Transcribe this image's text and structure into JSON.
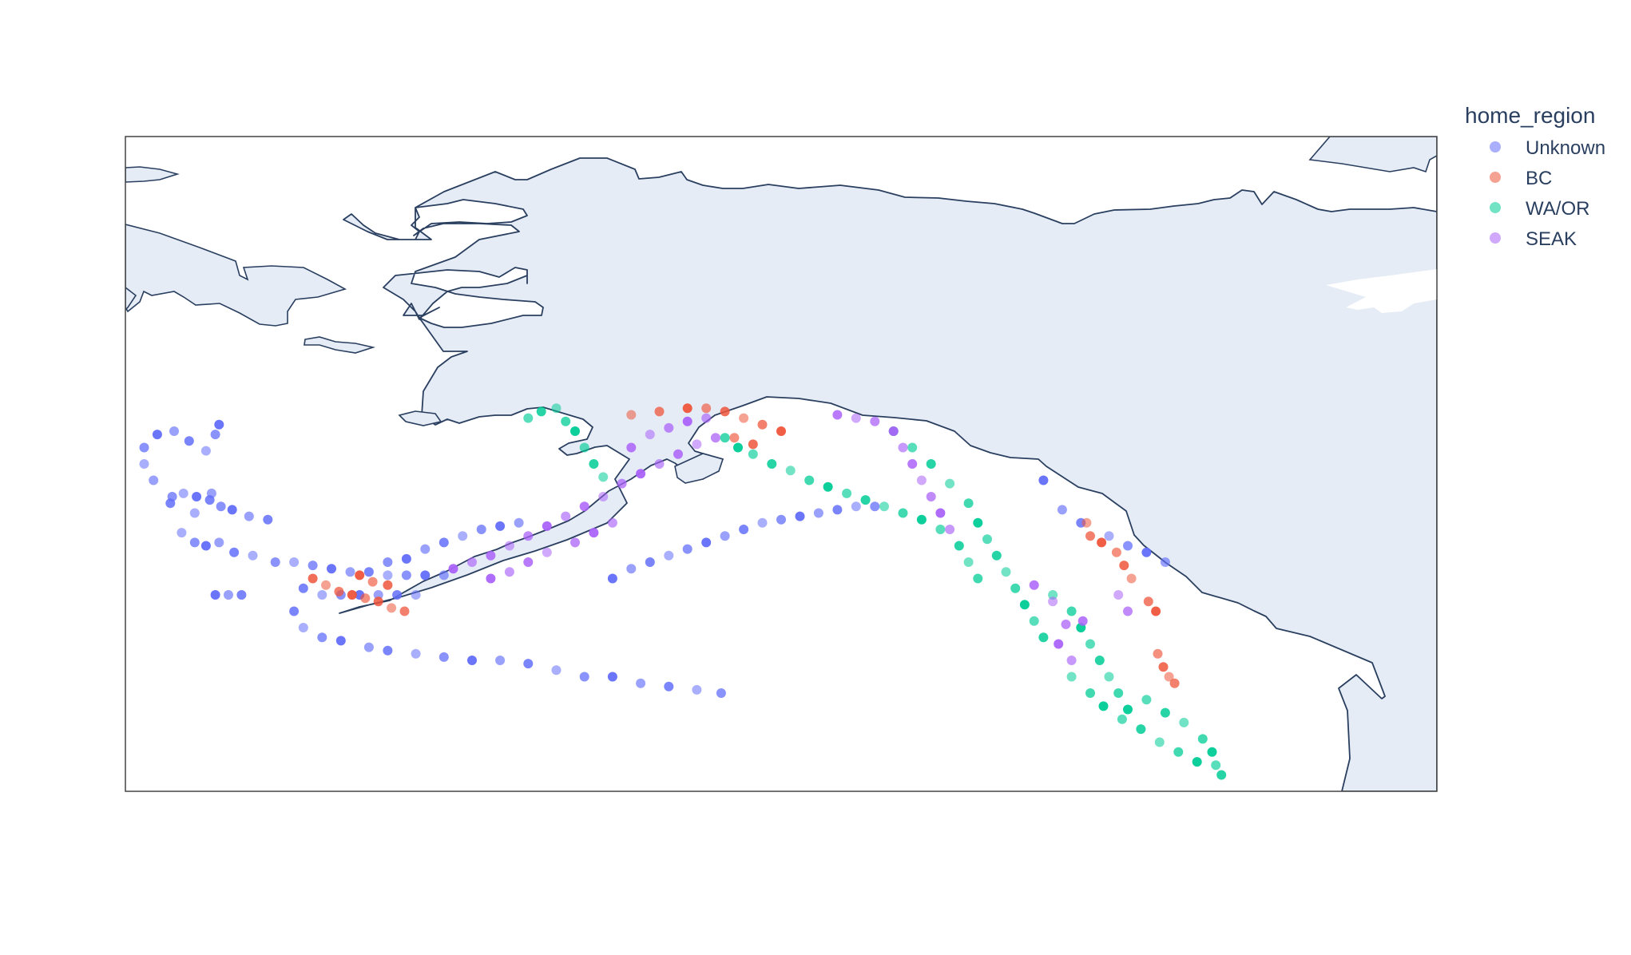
{
  "legend": {
    "title": "home_region",
    "items": [
      {
        "label": "Unknown",
        "color": "#636efa"
      },
      {
        "label": "BC",
        "color": "#ef553b"
      },
      {
        "label": "WA/OR",
        "color": "#00cc96"
      },
      {
        "label": "SEAK",
        "color": "#ab63fa"
      }
    ]
  },
  "colors": {
    "land": "#e5ecf6",
    "coastline": "#2a3f5f",
    "frame": "#444444",
    "background": "#ffffff"
  },
  "chart_data": {
    "type": "scatter",
    "projection": "geographic",
    "color_field": "home_region",
    "categories": [
      "Unknown",
      "BC",
      "WA/OR",
      "SEAK"
    ],
    "lonlim": [
      -190,
      -120
    ],
    "latlim": [
      45,
      65
    ],
    "marker_opacity": "varies",
    "series": [
      {
        "name": "Unknown",
        "color": "#636efa",
        "points": [
          [
            -189.0,
            55.0
          ],
          [
            -189.0,
            55.5
          ],
          [
            -188.3,
            55.9
          ],
          [
            -187.4,
            56.0
          ],
          [
            -186.6,
            55.7
          ],
          [
            -185.7,
            55.4
          ],
          [
            -185.2,
            55.9
          ],
          [
            -185.0,
            56.2
          ],
          [
            -188.5,
            54.5
          ],
          [
            -187.6,
            53.8
          ],
          [
            -186.3,
            53.5
          ],
          [
            -184.9,
            53.7
          ],
          [
            -184.3,
            53.6
          ],
          [
            -183.4,
            53.4
          ],
          [
            -182.4,
            53.3
          ],
          [
            -186.9,
            54.1
          ],
          [
            -187.5,
            54.0
          ],
          [
            -186.2,
            54.0
          ],
          [
            -185.4,
            54.1
          ],
          [
            -185.5,
            53.9
          ],
          [
            -187.0,
            52.9
          ],
          [
            -186.3,
            52.6
          ],
          [
            -185.7,
            52.5
          ],
          [
            -185.0,
            52.6
          ],
          [
            -184.2,
            52.3
          ],
          [
            -183.2,
            52.2
          ],
          [
            -182.0,
            52.0
          ],
          [
            -185.2,
            51.0
          ],
          [
            -184.5,
            51.0
          ],
          [
            -183.8,
            51.0
          ],
          [
            -181.0,
            52.0
          ],
          [
            -180.0,
            51.9
          ],
          [
            -179.0,
            51.8
          ],
          [
            -178.0,
            51.7
          ],
          [
            -177.0,
            51.7
          ],
          [
            -176.0,
            51.6
          ],
          [
            -175.0,
            51.6
          ],
          [
            -174.0,
            51.6
          ],
          [
            -173.0,
            51.6
          ],
          [
            -180.5,
            51.2
          ],
          [
            -179.5,
            51.0
          ],
          [
            -178.5,
            51.0
          ],
          [
            -177.5,
            51.0
          ],
          [
            -176.5,
            51.0
          ],
          [
            -175.5,
            51.0
          ],
          [
            -174.5,
            51.0
          ],
          [
            -176.0,
            52.0
          ],
          [
            -175.0,
            52.1
          ],
          [
            -174.0,
            52.4
          ],
          [
            -173.0,
            52.6
          ],
          [
            -172.0,
            52.8
          ],
          [
            -171.0,
            53.0
          ],
          [
            -170.0,
            53.1
          ],
          [
            -169.0,
            53.2
          ],
          [
            -181.0,
            50.5
          ],
          [
            -180.5,
            50.0
          ],
          [
            -179.5,
            49.7
          ],
          [
            -178.5,
            49.6
          ],
          [
            -177.0,
            49.4
          ],
          [
            -176.0,
            49.3
          ],
          [
            -174.5,
            49.2
          ],
          [
            -173.0,
            49.1
          ],
          [
            -171.5,
            49.0
          ],
          [
            -170.0,
            49.0
          ],
          [
            -168.5,
            48.9
          ],
          [
            -167.0,
            48.7
          ],
          [
            -165.5,
            48.5
          ],
          [
            -164.0,
            48.5
          ],
          [
            -162.5,
            48.3
          ],
          [
            -161.0,
            48.2
          ],
          [
            -159.5,
            48.1
          ],
          [
            -158.2,
            48.0
          ],
          [
            -164.0,
            51.5
          ],
          [
            -163.0,
            51.8
          ],
          [
            -162.0,
            52.0
          ],
          [
            -161.0,
            52.2
          ],
          [
            -160.0,
            52.4
          ],
          [
            -159.0,
            52.6
          ],
          [
            -158.0,
            52.8
          ],
          [
            -157.0,
            53.0
          ],
          [
            -156.0,
            53.2
          ],
          [
            -155.0,
            53.3
          ],
          [
            -154.0,
            53.4
          ],
          [
            -153.0,
            53.5
          ],
          [
            -152.0,
            53.6
          ],
          [
            -151.0,
            53.7
          ],
          [
            -150.0,
            53.7
          ],
          [
            -141.0,
            54.5
          ],
          [
            -140.0,
            53.6
          ],
          [
            -139.0,
            53.2
          ],
          [
            -137.5,
            52.8
          ],
          [
            -136.5,
            52.5
          ],
          [
            -135.5,
            52.3
          ],
          [
            -134.5,
            52.0
          ]
        ]
      },
      {
        "name": "BC",
        "color": "#ef553b",
        "points": [
          [
            -180.0,
            51.5
          ],
          [
            -179.3,
            51.3
          ],
          [
            -178.6,
            51.1
          ],
          [
            -177.9,
            51.0
          ],
          [
            -177.2,
            50.9
          ],
          [
            -176.5,
            50.8
          ],
          [
            -175.8,
            50.6
          ],
          [
            -175.1,
            50.5
          ],
          [
            -177.5,
            51.6
          ],
          [
            -176.8,
            51.4
          ],
          [
            -176.0,
            51.3
          ],
          [
            -163.0,
            56.5
          ],
          [
            -161.5,
            56.6
          ],
          [
            -160.0,
            56.7
          ],
          [
            -159.0,
            56.7
          ],
          [
            -158.0,
            56.6
          ],
          [
            -157.0,
            56.4
          ],
          [
            -156.0,
            56.2
          ],
          [
            -155.0,
            56.0
          ],
          [
            -157.5,
            55.8
          ],
          [
            -156.5,
            55.6
          ],
          [
            -138.7,
            53.2
          ],
          [
            -138.5,
            52.8
          ],
          [
            -137.9,
            52.6
          ],
          [
            -137.1,
            52.3
          ],
          [
            -136.7,
            51.9
          ],
          [
            -136.3,
            51.5
          ],
          [
            -135.4,
            50.8
          ],
          [
            -135.0,
            50.5
          ],
          [
            -134.9,
            49.2
          ],
          [
            -134.6,
            48.8
          ],
          [
            -134.3,
            48.5
          ],
          [
            -134.0,
            48.3
          ]
        ]
      },
      {
        "name": "WA/OR",
        "color": "#00cc96",
        "points": [
          [
            -168.5,
            56.4
          ],
          [
            -167.8,
            56.6
          ],
          [
            -167.0,
            56.7
          ],
          [
            -166.5,
            56.3
          ],
          [
            -166.0,
            56.0
          ],
          [
            -165.5,
            55.5
          ],
          [
            -165.0,
            55.0
          ],
          [
            -164.5,
            54.6
          ],
          [
            -158.0,
            55.8
          ],
          [
            -157.3,
            55.5
          ],
          [
            -156.5,
            55.3
          ],
          [
            -155.5,
            55.0
          ],
          [
            -154.5,
            54.8
          ],
          [
            -153.5,
            54.5
          ],
          [
            -152.5,
            54.3
          ],
          [
            -151.5,
            54.1
          ],
          [
            -150.5,
            53.9
          ],
          [
            -149.5,
            53.7
          ],
          [
            -148.5,
            53.5
          ],
          [
            -147.5,
            53.3
          ],
          [
            -146.5,
            53.0
          ],
          [
            -145.5,
            52.5
          ],
          [
            -145.0,
            52.0
          ],
          [
            -144.5,
            51.5
          ],
          [
            -149.0,
            56.0
          ],
          [
            -148.0,
            55.5
          ],
          [
            -147.0,
            55.0
          ],
          [
            -146.0,
            54.4
          ],
          [
            -145.0,
            53.8
          ],
          [
            -144.5,
            53.2
          ],
          [
            -144.0,
            52.7
          ],
          [
            -143.5,
            52.2
          ],
          [
            -143.0,
            51.7
          ],
          [
            -142.5,
            51.2
          ],
          [
            -142.0,
            50.7
          ],
          [
            -141.5,
            50.2
          ],
          [
            -141.0,
            49.7
          ],
          [
            -140.5,
            51.0
          ],
          [
            -139.5,
            50.5
          ],
          [
            -139.0,
            50.0
          ],
          [
            -138.5,
            49.5
          ],
          [
            -138.0,
            49.0
          ],
          [
            -137.5,
            48.5
          ],
          [
            -137.0,
            48.0
          ],
          [
            -136.5,
            47.5
          ],
          [
            -135.5,
            47.8
          ],
          [
            -134.5,
            47.4
          ],
          [
            -133.5,
            47.1
          ],
          [
            -132.5,
            46.6
          ],
          [
            -132.0,
            46.2
          ],
          [
            -131.8,
            45.8
          ],
          [
            -131.5,
            45.5
          ],
          [
            -139.5,
            48.5
          ],
          [
            -138.5,
            48.0
          ],
          [
            -137.8,
            47.6
          ],
          [
            -136.8,
            47.2
          ],
          [
            -135.8,
            46.9
          ],
          [
            -134.8,
            46.5
          ],
          [
            -133.8,
            46.2
          ],
          [
            -132.8,
            45.9
          ]
        ]
      },
      {
        "name": "SEAK",
        "color": "#ab63fa",
        "points": [
          [
            -172.5,
            51.8
          ],
          [
            -171.5,
            52.0
          ],
          [
            -170.5,
            52.2
          ],
          [
            -169.5,
            52.5
          ],
          [
            -168.5,
            52.8
          ],
          [
            -167.5,
            53.1
          ],
          [
            -166.5,
            53.4
          ],
          [
            -165.5,
            53.7
          ],
          [
            -164.5,
            54.0
          ],
          [
            -163.5,
            54.4
          ],
          [
            -162.5,
            54.7
          ],
          [
            -161.5,
            55.0
          ],
          [
            -160.5,
            55.3
          ],
          [
            -159.5,
            55.6
          ],
          [
            -158.5,
            55.8
          ],
          [
            -170.5,
            51.5
          ],
          [
            -169.5,
            51.7
          ],
          [
            -168.5,
            52.0
          ],
          [
            -167.5,
            52.3
          ],
          [
            -166.0,
            52.6
          ],
          [
            -165.0,
            52.9
          ],
          [
            -164.0,
            53.2
          ],
          [
            -163.0,
            55.5
          ],
          [
            -162.0,
            55.9
          ],
          [
            -161.0,
            56.1
          ],
          [
            -160.0,
            56.3
          ],
          [
            -159.0,
            56.4
          ],
          [
            -152.0,
            56.5
          ],
          [
            -151.0,
            56.4
          ],
          [
            -150.0,
            56.3
          ],
          [
            -149.0,
            56.0
          ],
          [
            -148.5,
            55.5
          ],
          [
            -148.0,
            55.0
          ],
          [
            -147.5,
            54.5
          ],
          [
            -147.0,
            54.0
          ],
          [
            -146.5,
            53.5
          ],
          [
            -146.0,
            53.0
          ],
          [
            -141.5,
            51.3
          ],
          [
            -140.5,
            50.8
          ],
          [
            -139.8,
            50.1
          ],
          [
            -140.2,
            49.5
          ],
          [
            -139.5,
            49.0
          ],
          [
            -138.9,
            50.2
          ],
          [
            -137.0,
            51.0
          ],
          [
            -136.5,
            50.5
          ]
        ]
      }
    ]
  }
}
